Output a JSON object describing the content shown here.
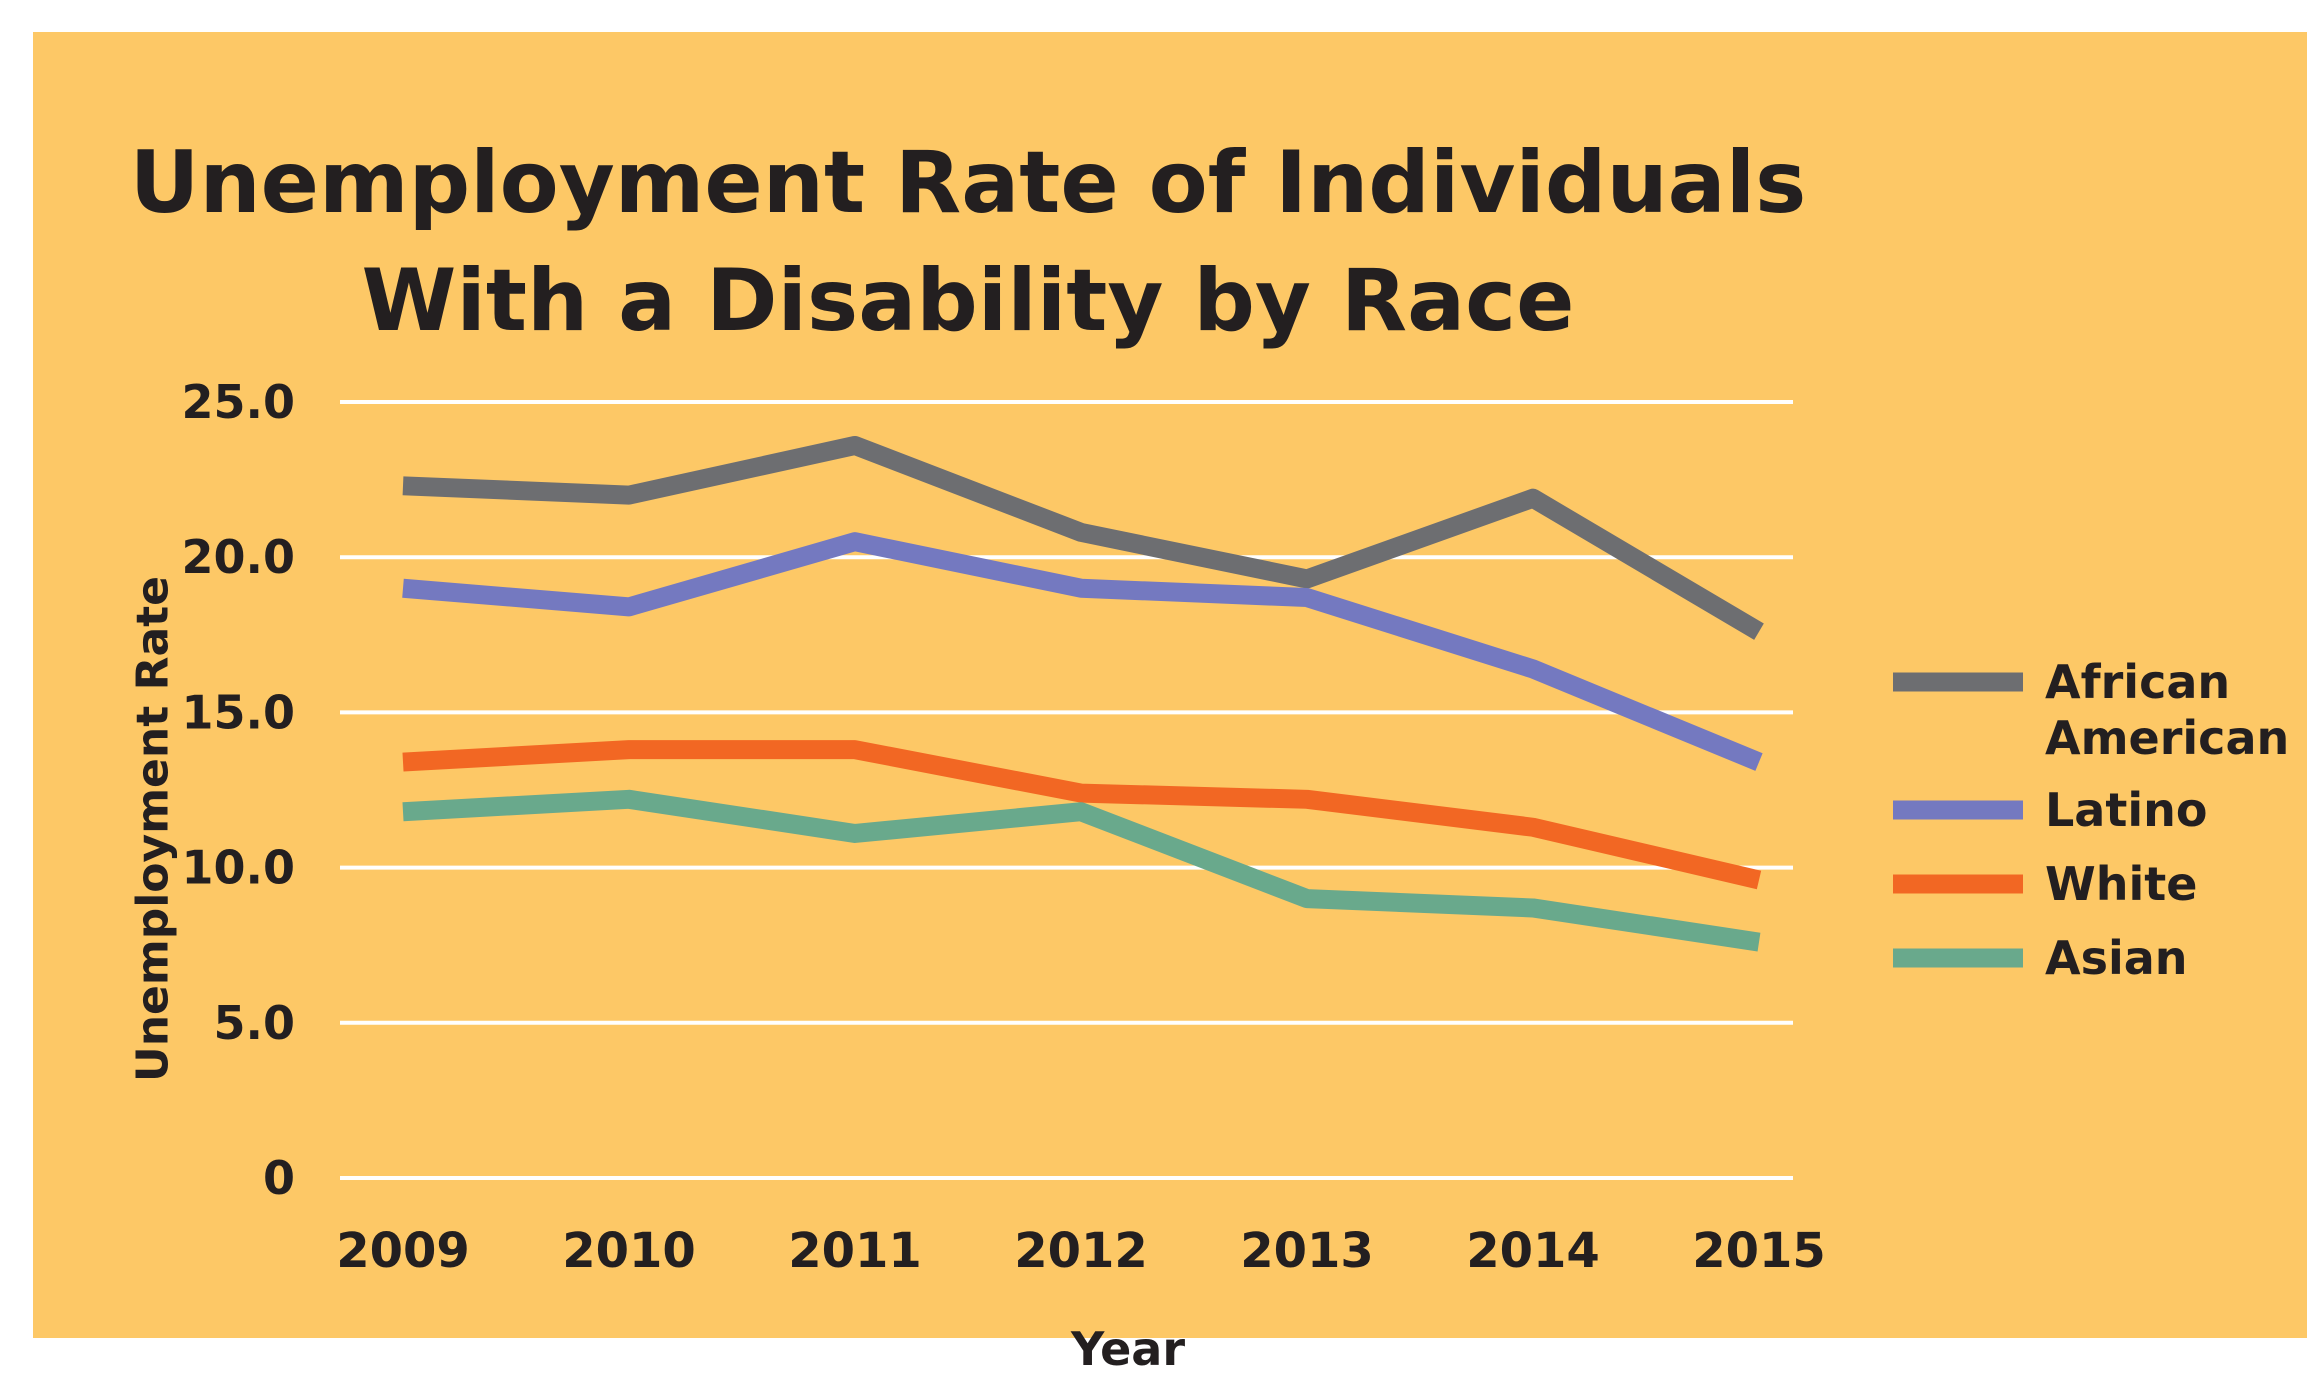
{
  "chart_data": {
    "type": "line",
    "title_lines": [
      "Unemployment Rate of Individuals",
      "With a Disability by Race"
    ],
    "xlabel": "Year",
    "ylabel": "Unemployment Rate",
    "x": [
      "2009",
      "2010",
      "2011",
      "2012",
      "2013",
      "2014",
      "2015"
    ],
    "y_ticks": [
      {
        "value": 0,
        "label": "0"
      },
      {
        "value": 5,
        "label": "5.0"
      },
      {
        "value": 10,
        "label": "10.0"
      },
      {
        "value": 15,
        "label": "15.0"
      },
      {
        "value": 20,
        "label": "20.0"
      },
      {
        "value": 25,
        "label": "25.0"
      }
    ],
    "ylim": [
      0,
      25
    ],
    "grid": true,
    "legend_position": "right",
    "series": [
      {
        "name": "African American",
        "name_lines": [
          "African",
          "American"
        ],
        "color": "#6d6e71",
        "values": [
          22.3,
          22.0,
          23.6,
          20.8,
          19.3,
          21.9,
          17.6
        ]
      },
      {
        "name": "Latino",
        "name_lines": [
          "Latino"
        ],
        "color": "#7479c0",
        "values": [
          19.0,
          18.4,
          20.5,
          19.0,
          18.7,
          16.4,
          13.4
        ]
      },
      {
        "name": "White",
        "name_lines": [
          "White"
        ],
        "color": "#f26723",
        "values": [
          13.4,
          13.8,
          13.8,
          12.4,
          12.2,
          11.3,
          9.6
        ]
      },
      {
        "name": "Asian",
        "name_lines": [
          "Asian"
        ],
        "color": "#69a98c",
        "values": [
          11.8,
          12.2,
          11.1,
          11.8,
          9.0,
          8.7,
          7.6
        ]
      }
    ]
  }
}
